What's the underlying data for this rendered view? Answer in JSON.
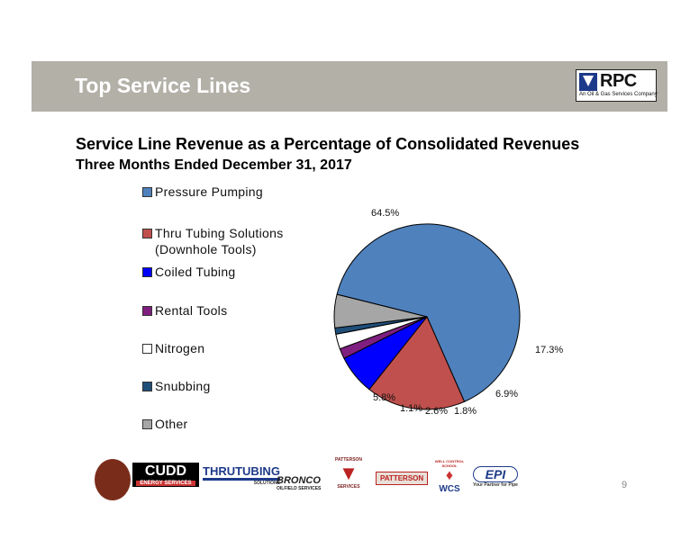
{
  "header": {
    "title": "Top Service Lines"
  },
  "logo": {
    "text": "RPC",
    "tagline": "An Oil & Gas Services Company",
    "icon": "rpc-v-icon",
    "color": "#1d3a8a"
  },
  "subtitle": "Service Line Revenue as a Percentage of Consolidated Revenues",
  "subtitle2": "Three Months Ended December 31, 2017",
  "chart_data": {
    "type": "pie",
    "title": "",
    "legend_placement": "left",
    "slices": [
      {
        "name": "Pressure Pumping",
        "value": 64.5,
        "label": "64.5%",
        "color": "#4f81bd"
      },
      {
        "name": "Thru Tubing Solutions (Downhole Tools)",
        "value": 17.3,
        "label": "17.3%",
        "color": "#c0504d"
      },
      {
        "name": "Coiled Tubing",
        "value": 6.9,
        "label": "6.9%",
        "color": "#0000ff"
      },
      {
        "name": "Rental Tools",
        "value": 1.8,
        "label": "1.8%",
        "color": "#7f1f7f"
      },
      {
        "name": "Nitrogen",
        "value": 2.6,
        "label": "2.6%",
        "color": "#ffffff"
      },
      {
        "name": "Snubbing",
        "value": 1.1,
        "label": "1.1%",
        "color": "#1f4e79"
      },
      {
        "name": "Other",
        "value": 5.8,
        "label": "5.8%",
        "color": "#a6a6a6"
      }
    ]
  },
  "legend": {
    "items": [
      {
        "line1": "Pressure Pumping",
        "line2": ""
      },
      {
        "line1": "Thru Tubing Solutions",
        "line2": "(Downhole Tools)"
      },
      {
        "line1": "Coiled Tubing",
        "line2": ""
      },
      {
        "line1": "Rental Tools",
        "line2": ""
      },
      {
        "line1": "Nitrogen",
        "line2": ""
      },
      {
        "line1": "Snubbing",
        "line2": ""
      },
      {
        "line1": "Other",
        "line2": ""
      }
    ]
  },
  "footer": {
    "logos": [
      {
        "text": "CUDD",
        "sub": "ENERGY SERVICES"
      },
      {
        "text": "THRUTUBING",
        "sub": "SOLUTIONS"
      },
      {
        "text": "BRONCO",
        "sub": "OILFIELD SERVICES"
      },
      {
        "text": "PATTERSON",
        "sub": "SERVICES"
      },
      {
        "text": "PATTERSON",
        "sub": ""
      },
      {
        "text": "WCS",
        "sub": "WELL CONTROL SCHOOL"
      },
      {
        "text": "EPI",
        "sub": "Your Partner for Pipe"
      }
    ],
    "page_number": "9"
  }
}
